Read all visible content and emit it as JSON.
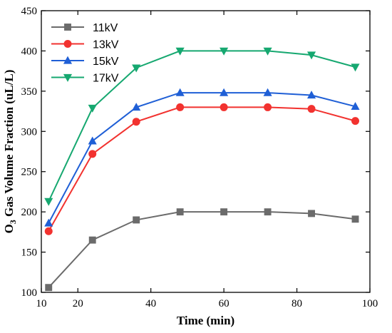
{
  "chart_data": {
    "type": "line",
    "xlabel": "Time (min)",
    "ylabel_main": "O",
    "ylabel_sub": "3",
    "ylabel_rest": " Gas Volume Fraction (uL/L)",
    "xlim": [
      10,
      100
    ],
    "ylim": [
      100,
      450
    ],
    "xticks": [
      10,
      20,
      40,
      60,
      80,
      100
    ],
    "yticks": [
      100,
      150,
      200,
      250,
      300,
      350,
      400,
      450
    ],
    "x": [
      12,
      24,
      36,
      48,
      60,
      72,
      84,
      96
    ],
    "series": [
      {
        "name": "11kV",
        "color": "#6b6b6b",
        "marker": "square",
        "values": [
          106,
          165,
          190,
          200,
          200,
          200,
          198,
          191
        ]
      },
      {
        "name": "13kV",
        "color": "#f2322f",
        "marker": "circle",
        "values": [
          176,
          272,
          312,
          330,
          330,
          330,
          328,
          313
        ]
      },
      {
        "name": "15kV",
        "color": "#1f5fd6",
        "marker": "triangle-up",
        "values": [
          186,
          288,
          330,
          348,
          348,
          348,
          345,
          331
        ]
      },
      {
        "name": "17kV",
        "color": "#16a870",
        "marker": "triangle-down",
        "values": [
          213,
          329,
          379,
          400,
          400,
          400,
          395,
          380
        ]
      }
    ],
    "legend_position": "top-left",
    "grid": false
  }
}
